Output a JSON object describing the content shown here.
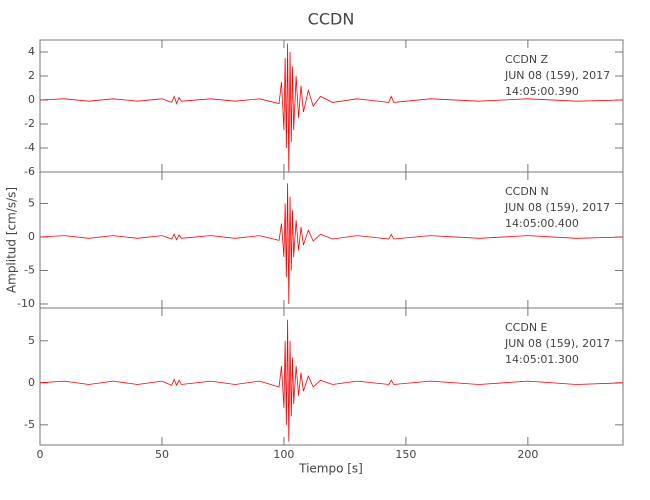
{
  "chart_data": [
    {
      "type": "line",
      "title": "CCDN",
      "annotations": [
        "CCDN   Z",
        "JUN 08 (159), 2017",
        "14:05:00.390"
      ],
      "x": [
        0,
        10,
        20,
        30,
        40,
        50,
        54,
        55,
        56,
        57,
        58,
        70,
        80,
        90,
        98,
        99,
        100,
        100.5,
        101,
        101.5,
        102,
        102.5,
        103,
        103.5,
        104,
        105,
        106,
        107,
        108,
        110,
        112,
        115,
        120,
        130,
        143,
        144,
        145,
        160,
        180,
        200,
        220,
        239
      ],
      "series": [
        {
          "color": "#ff0000",
          "values": [
            0,
            0.1,
            -0.1,
            0.1,
            -0.1,
            0.1,
            -0.2,
            0.3,
            -0.3,
            0.2,
            -0.1,
            0.1,
            -0.1,
            0.1,
            -0.3,
            1.5,
            -2.5,
            3.5,
            -4,
            4.7,
            -6,
            4,
            -3.5,
            2.8,
            -2.5,
            2,
            -1.5,
            1.2,
            -1,
            0.8,
            -0.5,
            0.3,
            -0.2,
            0.1,
            -0.2,
            0.3,
            -0.2,
            0.1,
            -0.1,
            0.1,
            -0.1,
            0
          ]
        }
      ],
      "xlim": [
        0,
        239
      ],
      "xticks": [
        0,
        50,
        100,
        150,
        200
      ],
      "ylim": [
        -6,
        5
      ],
      "yticks": [
        -6,
        -4,
        -2,
        0,
        2,
        4
      ]
    },
    {
      "type": "line",
      "y_label": "Amplitud [cm/s/s]",
      "annotations": [
        "CCDN   N",
        "JUN 08 (159), 2017",
        "14:05:00.400"
      ],
      "x": [
        0,
        10,
        20,
        30,
        40,
        50,
        54,
        55,
        56,
        57,
        58,
        70,
        80,
        90,
        98,
        99,
        100,
        100.5,
        101,
        101.5,
        102,
        102.5,
        103,
        103.5,
        104,
        105,
        106,
        107,
        108,
        110,
        112,
        115,
        120,
        130,
        143,
        144,
        145,
        160,
        180,
        200,
        220,
        239
      ],
      "series": [
        {
          "color": "#ff0000",
          "values": [
            0,
            0.2,
            -0.2,
            0.2,
            -0.2,
            0.2,
            -0.3,
            0.4,
            -0.4,
            0.3,
            -0.2,
            0.2,
            -0.2,
            0.2,
            -0.5,
            2,
            -3,
            5,
            -6,
            8,
            -10,
            6,
            -5,
            4,
            -3,
            2.5,
            -2,
            1.5,
            -1.2,
            1,
            -0.6,
            0.4,
            -0.3,
            0.2,
            -0.3,
            0.4,
            -0.3,
            0.2,
            -0.2,
            0.2,
            -0.2,
            0
          ]
        }
      ],
      "xlim": [
        0,
        239
      ],
      "xticks": [
        0,
        50,
        100,
        150,
        200
      ],
      "ylim": [
        -10.6,
        9.7
      ],
      "yticks": [
        -10,
        -5,
        0,
        5
      ]
    },
    {
      "type": "line",
      "x_label": "Tiempo [s]",
      "annotations": [
        "CCDN   E",
        "JUN 08 (159), 2017",
        "14:05:01.300"
      ],
      "x": [
        0,
        10,
        20,
        30,
        40,
        50,
        54,
        55,
        56,
        57,
        58,
        70,
        80,
        90,
        98,
        99,
        100,
        100.5,
        101,
        101.5,
        102,
        102.5,
        103,
        103.5,
        104,
        105,
        106,
        107,
        108,
        110,
        112,
        115,
        120,
        130,
        143,
        144,
        145,
        160,
        180,
        200,
        220,
        239
      ],
      "series": [
        {
          "color": "#ff0000",
          "values": [
            0,
            0.2,
            -0.2,
            0.2,
            -0.2,
            0.2,
            -0.3,
            0.4,
            -0.3,
            0.3,
            -0.2,
            0.2,
            -0.2,
            0.2,
            -0.5,
            2,
            -3,
            5,
            -5,
            7.5,
            -7,
            5,
            -4,
            3,
            -2.5,
            2,
            -1.5,
            1.2,
            -1,
            0.8,
            -0.5,
            0.3,
            -0.2,
            0.2,
            -0.2,
            0.3,
            -0.2,
            0.2,
            -0.2,
            0.2,
            -0.2,
            0
          ]
        }
      ],
      "xlim": [
        0,
        239
      ],
      "xticks": [
        0,
        50,
        100,
        150,
        200
      ],
      "ylim": [
        -7.4,
        8.9
      ],
      "yticks": [
        -5,
        0,
        5
      ]
    }
  ]
}
